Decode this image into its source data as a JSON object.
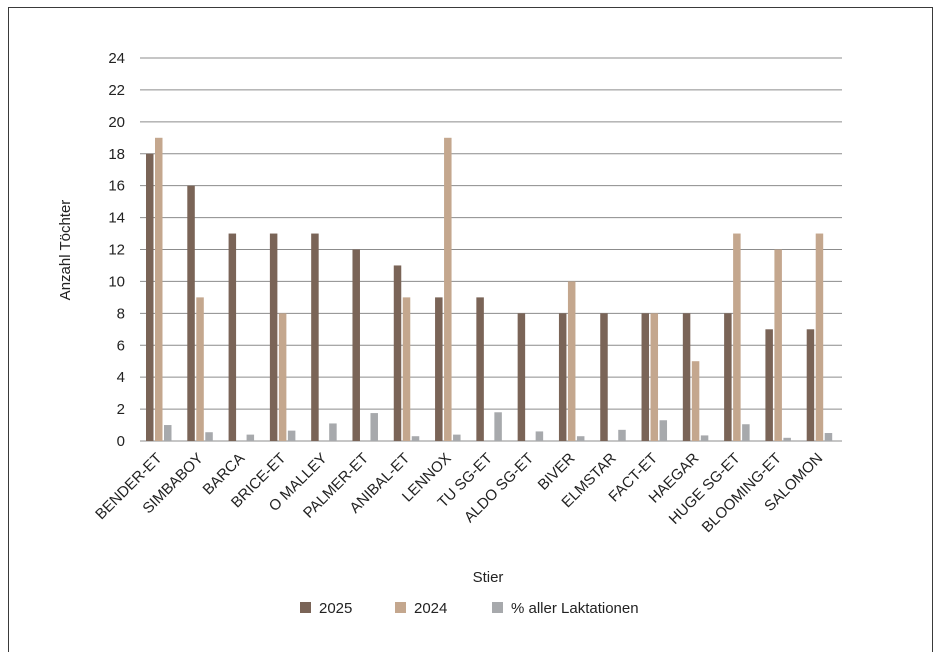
{
  "chart_data": {
    "type": "bar",
    "title": "",
    "xlabel": "Stier",
    "ylabel": "Anzahl Töchter",
    "ylim": [
      0,
      24
    ],
    "yticks": [
      0,
      2,
      4,
      6,
      8,
      10,
      12,
      14,
      16,
      18,
      20,
      22,
      24
    ],
    "grid": "horizontal",
    "legend_position": "bottom",
    "categories": [
      "BENDER-ET",
      "SIMBABOY",
      "BARCA",
      "BRICE-ET",
      "O MALLEY",
      "PALMER-ET",
      "ANIBAL-ET",
      "LENNOX",
      "TU SG-ET",
      "ALDO SG-ET",
      "BIVER",
      "ELMSTAR",
      "FACT-ET",
      "HAEGAR",
      "HUGE SG-ET",
      "BLOOMING-ET",
      "SALOMON"
    ],
    "series": [
      {
        "name": "2025",
        "color": "#7a6457",
        "values": [
          18,
          16,
          13,
          13,
          13,
          12,
          11,
          9,
          9,
          8,
          8,
          8,
          8,
          8,
          8,
          7,
          7
        ]
      },
      {
        "name": "2024",
        "color": "#c4a78e",
        "values": [
          19,
          9,
          0,
          8,
          0,
          0,
          9,
          19,
          0,
          0,
          10,
          0,
          8,
          5,
          13,
          12,
          13
        ]
      },
      {
        "name": "% aller Laktationen",
        "color": "#a7a9ac",
        "values": [
          1.0,
          0.55,
          0.4,
          0.65,
          1.1,
          1.75,
          0.3,
          0.4,
          1.8,
          0.6,
          0.3,
          0.7,
          1.3,
          0.35,
          1.05,
          0.2,
          0.5
        ]
      }
    ]
  }
}
